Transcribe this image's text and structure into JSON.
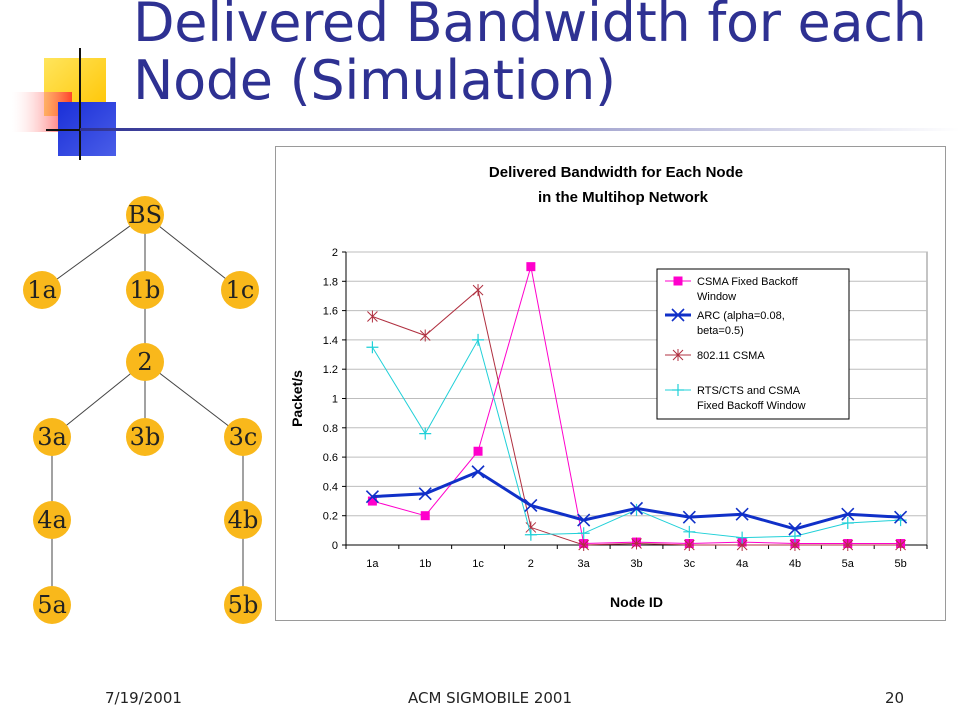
{
  "slide": {
    "title_line1": "Delivered Bandwidth for each",
    "title_line2": "Node (Simulation)",
    "footer_date": "7/19/2001",
    "footer_conf": "ACM SIGMOBILE 2001",
    "footer_page": "20"
  },
  "colors": {
    "title": "#2e3192",
    "node_fill": "#f9b81b",
    "deco_yellow": "#ffcc00",
    "deco_blue": "#2b3fd0",
    "deco_red": "#ff3b3b"
  },
  "tree": {
    "nodes": [
      "BS",
      "1a",
      "1b",
      "1c",
      "2",
      "3a",
      "3b",
      "3c",
      "4a",
      "4b",
      "5a",
      "5b"
    ],
    "edges": [
      [
        "BS",
        "1a"
      ],
      [
        "BS",
        "1b"
      ],
      [
        "BS",
        "1c"
      ],
      [
        "1b",
        "2"
      ],
      [
        "2",
        "3a"
      ],
      [
        "2",
        "3b"
      ],
      [
        "2",
        "3c"
      ],
      [
        "3a",
        "4a"
      ],
      [
        "3c",
        "4b"
      ],
      [
        "4a",
        "5a"
      ],
      [
        "4b",
        "5b"
      ]
    ]
  },
  "chart_data": {
    "type": "line",
    "title_line1": "Delivered Bandwidth for Each Node",
    "title_line2": "in the Multihop Network",
    "xlabel": "Node ID",
    "ylabel": "Packet/s",
    "ylim": [
      0,
      2
    ],
    "yticks": [
      "0",
      "0.2",
      "0.4",
      "0.6",
      "0.8",
      "1",
      "1.2",
      "1.4",
      "1.6",
      "1.8",
      "2"
    ],
    "categories": [
      "1a",
      "1b",
      "1c",
      "2",
      "3a",
      "3b",
      "3c",
      "4a",
      "4b",
      "5a",
      "5b"
    ],
    "grid": true,
    "legend_position": "top-right",
    "series": [
      {
        "name_line1": "CSMA Fixed Backoff",
        "name_line2": "Window",
        "color": "#ff00cc",
        "marker": "square",
        "width": 1,
        "values": [
          0.3,
          0.2,
          0.64,
          1.9,
          0.01,
          0.02,
          0.01,
          0.02,
          0.01,
          0.01,
          0.01
        ]
      },
      {
        "name_line1": "ARC (alpha=0.08,",
        "name_line2": "beta=0.5)",
        "color": "#1030c8",
        "marker": "x",
        "width": 3,
        "values": [
          0.33,
          0.35,
          0.5,
          0.27,
          0.17,
          0.25,
          0.19,
          0.21,
          0.11,
          0.21,
          0.19
        ]
      },
      {
        "name_line1": "802.11 CSMA",
        "name_line2": "",
        "color": "#b03040",
        "marker": "star",
        "width": 1,
        "values": [
          1.56,
          1.43,
          1.74,
          0.12,
          0.0,
          0.01,
          0.0,
          0.0,
          0.0,
          0.0,
          0.0
        ]
      },
      {
        "name_line1": "RTS/CTS and CSMA",
        "name_line2": "Fixed Backoff Window",
        "color": "#20d0d8",
        "marker": "plus",
        "width": 1,
        "values": [
          1.35,
          0.76,
          1.4,
          0.07,
          0.08,
          0.24,
          0.09,
          0.05,
          0.06,
          0.15,
          0.17
        ]
      }
    ]
  }
}
